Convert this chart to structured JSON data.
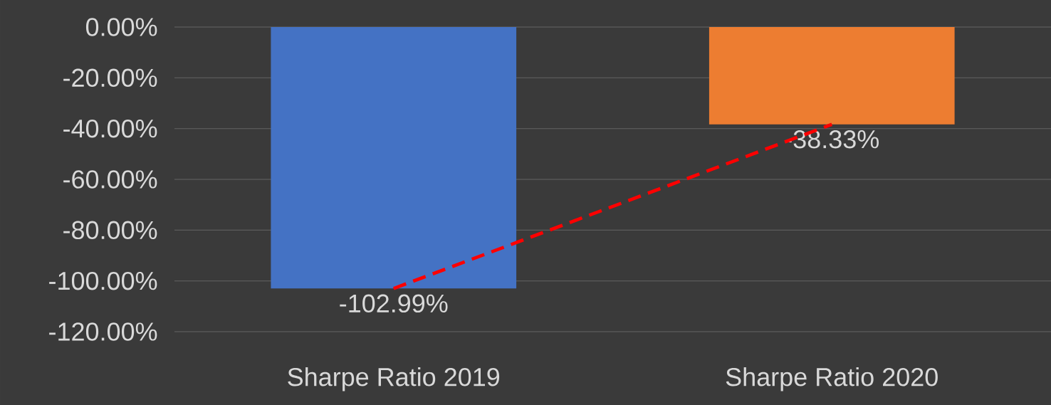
{
  "chart_data": {
    "type": "bar",
    "categories": [
      "Sharpe Ratio 2019",
      "Sharpe Ratio 2020"
    ],
    "series": [
      {
        "values": [
          -102.99,
          -38.33
        ],
        "colors": [
          "#4472c4",
          "#ed7d31"
        ],
        "value_labels": [
          "-102.99%",
          "-38.33%"
        ]
      },
      {
        "type": "line",
        "values": [
          -102.99,
          -38.33
        ],
        "color": "#ff0000",
        "line_style": "dashed"
      }
    ],
    "ylim": [
      -120,
      0
    ],
    "yticks": [
      {
        "value": -120,
        "label": "-120.00%"
      },
      {
        "value": -100,
        "label": "-100.00%"
      },
      {
        "value": -80,
        "label": "-80.00%"
      },
      {
        "value": -60,
        "label": "-60.00%"
      },
      {
        "value": -40,
        "label": "-40.00%"
      },
      {
        "value": -20,
        "label": "-20.00%"
      },
      {
        "value": 0,
        "label": "0.00%"
      }
    ],
    "grid": "y"
  }
}
